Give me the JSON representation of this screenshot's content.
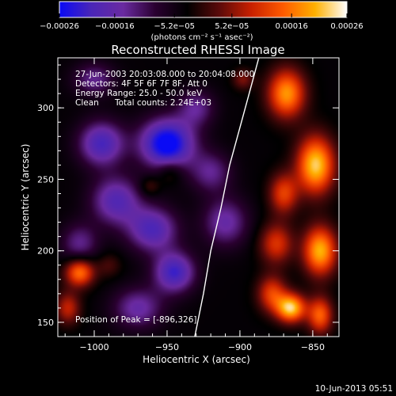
{
  "chart_data": {
    "type": "heatmap",
    "title": "Reconstructed RHESSI Image",
    "xlabel": "Heliocentric X (arcsec)",
    "ylabel": "Heliocentric Y (arcsec)",
    "xlim": [
      -1025,
      -832
    ],
    "ylim": [
      140,
      335
    ],
    "x_ticks": [
      -1000,
      -950,
      -900,
      -850
    ],
    "x_tick_labels": [
      "−1000",
      "−950",
      "−900",
      "−850"
    ],
    "y_ticks": [
      150,
      200,
      250,
      300
    ],
    "y_tick_labels": [
      "150",
      "200",
      "250",
      "300"
    ],
    "colorbar": {
      "range": [
        -0.00026,
        0.00026
      ],
      "ticks": [
        -0.00026,
        -0.00016,
        -5.2e-05,
        5.2e-05,
        0.00016,
        0.00026
      ],
      "tick_labels": [
        "−0.00026",
        "−0.00016",
        "−5.2e−05",
        "5.2e−05",
        "0.00016",
        "0.00026"
      ],
      "unit_label": "(photons cm⁻² s⁻¹ asec⁻²)",
      "colormap": [
        "#0a0af5",
        "#4a26b8",
        "#6a2aa0",
        "#2a0030",
        "#000000",
        "#5a0a0a",
        "#c82000",
        "#ff5a00",
        "#ffb000",
        "#ffffff"
      ]
    },
    "annotations": [
      "27-Jun-2003 20:03:08.000 to 20:04:08.000",
      "Detectors: 4F 5F 6F 7F 8F, Att 0",
      "Energy Range: 25.0 - 50.0 keV",
      "Clean",
      "Total counts: 2.24E+03"
    ],
    "peak_label": "Position of Peak = [-896,326]",
    "peak": [
      -896,
      326
    ],
    "limb_curve": [
      [
        -931,
        140
      ],
      [
        -925,
        170
      ],
      [
        -920,
        200
      ],
      [
        -913,
        230
      ],
      [
        -907,
        260
      ],
      [
        -899,
        290
      ],
      [
        -891,
        320
      ],
      [
        -887,
        335
      ]
    ],
    "blobs": [
      {
        "x": -950,
        "y": 275,
        "sx": 13,
        "sy": 12,
        "v": -0.00025
      },
      {
        "x": -995,
        "y": 275,
        "sx": 11,
        "sy": 11,
        "v": -0.00017
      },
      {
        "x": -985,
        "y": 235,
        "sx": 12,
        "sy": 12,
        "v": -0.00015
      },
      {
        "x": -960,
        "y": 215,
        "sx": 12,
        "sy": 11,
        "v": -0.00016
      },
      {
        "x": -945,
        "y": 185,
        "sx": 10,
        "sy": 10,
        "v": -0.00018
      },
      {
        "x": -910,
        "y": 220,
        "sx": 11,
        "sy": 12,
        "v": -0.00012
      },
      {
        "x": -920,
        "y": 255,
        "sx": 10,
        "sy": 10,
        "v": -0.0001
      },
      {
        "x": -970,
        "y": 160,
        "sx": 12,
        "sy": 10,
        "v": -0.00012
      },
      {
        "x": -1010,
        "y": 205,
        "sx": 9,
        "sy": 10,
        "v": -0.0001
      },
      {
        "x": -1000,
        "y": 320,
        "sx": 10,
        "sy": 8,
        "v": -0.0001
      },
      {
        "x": -930,
        "y": 300,
        "sx": 9,
        "sy": 9,
        "v": -0.0001
      },
      {
        "x": -898,
        "y": 320,
        "sx": 5,
        "sy": 5,
        "v": 8e-05
      },
      {
        "x": -868,
        "y": 310,
        "sx": 9,
        "sy": 12,
        "v": 0.00022
      },
      {
        "x": -848,
        "y": 260,
        "sx": 9,
        "sy": 14,
        "v": 0.00026
      },
      {
        "x": -870,
        "y": 240,
        "sx": 7,
        "sy": 10,
        "v": 0.00015
      },
      {
        "x": -875,
        "y": 205,
        "sx": 8,
        "sy": 10,
        "v": 0.00014
      },
      {
        "x": -845,
        "y": 200,
        "sx": 8,
        "sy": 12,
        "v": 0.00024
      },
      {
        "x": -878,
        "y": 170,
        "sx": 7,
        "sy": 9,
        "v": 0.00015
      },
      {
        "x": -865,
        "y": 160,
        "sx": 7,
        "sy": 7,
        "v": 0.00026
      },
      {
        "x": -845,
        "y": 155,
        "sx": 6,
        "sy": 9,
        "v": 0.00018
      },
      {
        "x": -1010,
        "y": 185,
        "sx": 7,
        "sy": 7,
        "v": 0.0002
      },
      {
        "x": -1018,
        "y": 160,
        "sx": 6,
        "sy": 8,
        "v": 0.00012
      },
      {
        "x": -948,
        "y": 255,
        "sx": 6,
        "sy": 6,
        "v": 6e-05
      },
      {
        "x": -962,
        "y": 245,
        "sx": 5,
        "sy": 5,
        "v": 6e-05
      },
      {
        "x": -990,
        "y": 190,
        "sx": 6,
        "sy": 6,
        "v": 5e-05
      }
    ]
  },
  "footer": {
    "date": "10-Jun-2013 05:51"
  }
}
